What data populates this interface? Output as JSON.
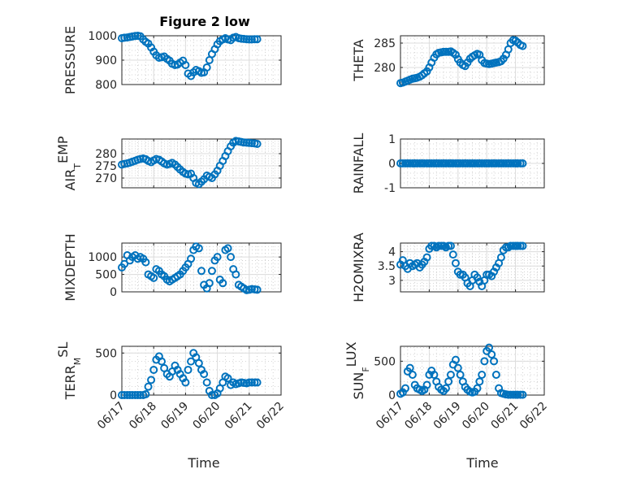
{
  "figure": {
    "title": "Figure 2 low",
    "xlabel": "Time",
    "series_color": "#0072BD",
    "x_ticks": [
      "06/17",
      "06/18",
      "06/19",
      "06/20",
      "06/21",
      "06/22"
    ]
  },
  "chart_data": [
    {
      "type": "scatter",
      "ylabel": "PRESSURE",
      "ylim": [
        800,
        1000
      ],
      "yticks": [
        800,
        900,
        1000
      ],
      "xlim": [
        0,
        5
      ],
      "grid": true,
      "x": [
        0,
        0.08,
        0.17,
        0.25,
        0.33,
        0.42,
        0.5,
        0.58,
        0.67,
        0.75,
        0.83,
        0.92,
        1,
        1.08,
        1.17,
        1.25,
        1.33,
        1.42,
        1.5,
        1.58,
        1.67,
        1.75,
        1.83,
        1.92,
        2,
        2.08,
        2.17,
        2.25,
        2.33,
        2.42,
        2.5,
        2.58,
        2.67,
        2.75,
        2.83,
        2.92,
        3,
        3.08,
        3.17,
        3.25,
        3.33,
        3.42,
        3.5,
        3.58,
        3.67,
        3.75,
        3.83,
        3.92,
        4,
        4.08,
        4.17,
        4.25
      ],
      "y": [
        990,
        992,
        993,
        995,
        997,
        999,
        1000,
        998,
        985,
        975,
        968,
        952,
        935,
        920,
        910,
        912,
        915,
        905,
        898,
        885,
        880,
        882,
        890,
        898,
        880,
        845,
        835,
        850,
        860,
        855,
        848,
        850,
        870,
        900,
        925,
        945,
        965,
        978,
        985,
        990,
        985,
        982,
        992,
        995,
        990,
        988,
        987,
        986,
        985,
        985,
        986,
        986
      ]
    },
    {
      "type": "scatter",
      "ylabel": "THETA",
      "ylim": [
        276.5,
        286.5
      ],
      "yticks": [
        280,
        285
      ],
      "xlim": [
        0,
        5
      ],
      "grid": true,
      "x": [
        0,
        0.08,
        0.17,
        0.25,
        0.33,
        0.42,
        0.5,
        0.58,
        0.67,
        0.75,
        0.83,
        0.92,
        1,
        1.08,
        1.17,
        1.25,
        1.33,
        1.42,
        1.5,
        1.58,
        1.67,
        1.75,
        1.83,
        1.92,
        2,
        2.08,
        2.17,
        2.25,
        2.33,
        2.42,
        2.5,
        2.58,
        2.67,
        2.75,
        2.83,
        2.92,
        3,
        3.08,
        3.17,
        3.25,
        3.33,
        3.42,
        3.5,
        3.58,
        3.67,
        3.75,
        3.83,
        3.92,
        4,
        4.08,
        4.17,
        4.25
      ],
      "y": [
        276.8,
        276.9,
        277.1,
        277.3,
        277.5,
        277.7,
        277.8,
        277.9,
        278.1,
        278.4,
        278.8,
        279.2,
        280.0,
        281.0,
        282.0,
        282.7,
        283.0,
        283.1,
        283.2,
        283.2,
        283.2,
        283.3,
        283.0,
        282.6,
        281.7,
        281.0,
        280.5,
        280.3,
        281.0,
        281.8,
        282.2,
        282.5,
        282.8,
        282.6,
        281.5,
        280.9,
        280.8,
        280.7,
        280.8,
        280.9,
        281.0,
        281.1,
        281.3,
        281.8,
        282.6,
        283.7,
        285.0,
        285.6,
        285.5,
        285.1,
        284.6,
        284.4
      ]
    },
    {
      "type": "scatter",
      "ylabel": "AIR_TEMP",
      "ylim": [
        266,
        286
      ],
      "yticks": [
        270,
        275,
        280
      ],
      "xlim": [
        0,
        5
      ],
      "grid": true,
      "x": [
        0,
        0.08,
        0.17,
        0.25,
        0.33,
        0.42,
        0.5,
        0.58,
        0.67,
        0.75,
        0.83,
        0.92,
        1,
        1.08,
        1.17,
        1.25,
        1.33,
        1.42,
        1.5,
        1.58,
        1.67,
        1.75,
        1.83,
        1.92,
        2,
        2.08,
        2.17,
        2.25,
        2.33,
        2.42,
        2.5,
        2.58,
        2.67,
        2.75,
        2.83,
        2.92,
        3,
        3.08,
        3.17,
        3.25,
        3.33,
        3.42,
        3.5,
        3.58,
        3.67,
        3.75,
        3.83,
        3.92,
        4,
        4.08,
        4.17,
        4.25
      ],
      "y": [
        275.5,
        275.8,
        276.0,
        276.3,
        276.7,
        277.1,
        277.5,
        277.8,
        278.0,
        277.7,
        277.0,
        276.5,
        277.2,
        277.8,
        277.5,
        276.8,
        276.0,
        275.5,
        275.8,
        276.2,
        275.5,
        274.5,
        273.5,
        272.5,
        271.8,
        271.5,
        271.8,
        270.0,
        268.0,
        267.5,
        268.5,
        269.5,
        271.0,
        270.5,
        270.0,
        271.5,
        273.0,
        275.0,
        277.0,
        279.0,
        281.0,
        283.0,
        284.5,
        285.2,
        285.0,
        284.8,
        284.6,
        284.5,
        284.4,
        284.3,
        284.2,
        284.0
      ]
    },
    {
      "type": "scatter",
      "ylabel": "RAINFALL",
      "ylim": [
        -1,
        1
      ],
      "yticks": [
        -1,
        0,
        1
      ],
      "xlim": [
        0,
        5
      ],
      "grid": true,
      "x": [
        0,
        0.08,
        0.17,
        0.25,
        0.33,
        0.42,
        0.5,
        0.58,
        0.67,
        0.75,
        0.83,
        0.92,
        1,
        1.08,
        1.17,
        1.25,
        1.33,
        1.42,
        1.5,
        1.58,
        1.67,
        1.75,
        1.83,
        1.92,
        2,
        2.08,
        2.17,
        2.25,
        2.33,
        2.42,
        2.5,
        2.58,
        2.67,
        2.75,
        2.83,
        2.92,
        3,
        3.08,
        3.17,
        3.25,
        3.33,
        3.42,
        3.5,
        3.58,
        3.67,
        3.75,
        3.83,
        3.92,
        4,
        4.08,
        4.17,
        4.25
      ],
      "y": [
        0,
        0,
        0,
        0,
        0,
        0,
        0,
        0,
        0,
        0,
        0,
        0,
        0,
        0,
        0,
        0,
        0,
        0,
        0,
        0,
        0,
        0,
        0,
        0,
        0,
        0,
        0,
        0,
        0,
        0,
        0,
        0,
        0,
        0,
        0,
        0,
        0,
        0,
        0,
        0,
        0,
        0,
        0,
        0,
        0,
        0,
        0,
        0,
        0,
        0,
        0,
        0
      ]
    },
    {
      "type": "scatter",
      "ylabel": "MIXDEPTH",
      "ylim": [
        0,
        1400
      ],
      "yticks": [
        0,
        500,
        1000
      ],
      "xlim": [
        0,
        5
      ],
      "grid": true,
      "x": [
        0,
        0.08,
        0.17,
        0.25,
        0.33,
        0.42,
        0.5,
        0.58,
        0.67,
        0.75,
        0.83,
        0.92,
        1,
        1.08,
        1.17,
        1.25,
        1.33,
        1.42,
        1.5,
        1.58,
        1.67,
        1.75,
        1.83,
        1.92,
        2,
        2.08,
        2.17,
        2.25,
        2.33,
        2.42,
        2.5,
        2.58,
        2.67,
        2.75,
        2.83,
        2.92,
        3,
        3.08,
        3.17,
        3.25,
        3.33,
        3.42,
        3.5,
        3.58,
        3.67,
        3.75,
        3.83,
        3.92,
        4,
        4.08,
        4.17,
        4.25
      ],
      "y": [
        700,
        800,
        1050,
        900,
        1000,
        1050,
        950,
        1000,
        950,
        850,
        500,
        450,
        400,
        650,
        600,
        500,
        450,
        350,
        300,
        350,
        400,
        450,
        500,
        600,
        700,
        800,
        950,
        1200,
        1300,
        1250,
        600,
        200,
        100,
        250,
        600,
        900,
        1000,
        350,
        250,
        1200,
        1250,
        1000,
        650,
        500,
        200,
        150,
        100,
        50,
        60,
        80,
        70,
        60
      ]
    },
    {
      "type": "scatter",
      "ylabel": "H2OMIXRA",
      "ylim": [
        2.6,
        4.3
      ],
      "yticks": [
        3,
        3.5,
        4
      ],
      "xlim": [
        0,
        5
      ],
      "grid": true,
      "x": [
        0,
        0.08,
        0.17,
        0.25,
        0.33,
        0.42,
        0.5,
        0.58,
        0.67,
        0.75,
        0.83,
        0.92,
        1,
        1.08,
        1.17,
        1.25,
        1.33,
        1.42,
        1.5,
        1.58,
        1.67,
        1.75,
        1.83,
        1.92,
        2,
        2.08,
        2.17,
        2.25,
        2.33,
        2.42,
        2.5,
        2.58,
        2.67,
        2.75,
        2.83,
        2.92,
        3,
        3.08,
        3.17,
        3.25,
        3.33,
        3.42,
        3.5,
        3.58,
        3.67,
        3.75,
        3.83,
        3.92,
        4,
        4.08,
        4.17,
        4.25
      ],
      "y": [
        3.55,
        3.7,
        3.5,
        3.4,
        3.6,
        3.5,
        3.55,
        3.6,
        3.45,
        3.55,
        3.65,
        3.8,
        4.1,
        4.2,
        4.2,
        4.15,
        4.2,
        4.2,
        4.2,
        4.15,
        4.2,
        4.2,
        3.9,
        3.6,
        3.3,
        3.2,
        3.2,
        3.1,
        2.9,
        2.8,
        3.0,
        3.2,
        3.1,
        2.95,
        2.8,
        3.0,
        3.2,
        3.2,
        3.15,
        3.3,
        3.45,
        3.6,
        3.8,
        4.05,
        4.15,
        4.15,
        4.2,
        4.2,
        4.2,
        4.2,
        4.2,
        4.2
      ]
    },
    {
      "type": "scatter",
      "ylabel": "TERR_MSL",
      "ylim": [
        0,
        580
      ],
      "yticks": [
        0,
        500
      ],
      "xlim": [
        0,
        5
      ],
      "grid": true,
      "x": [
        0,
        0.08,
        0.17,
        0.25,
        0.33,
        0.42,
        0.5,
        0.58,
        0.67,
        0.75,
        0.83,
        0.92,
        1,
        1.08,
        1.17,
        1.25,
        1.33,
        1.42,
        1.5,
        1.58,
        1.67,
        1.75,
        1.83,
        1.92,
        2,
        2.08,
        2.17,
        2.25,
        2.33,
        2.42,
        2.5,
        2.58,
        2.67,
        2.75,
        2.83,
        2.92,
        3,
        3.08,
        3.17,
        3.25,
        3.33,
        3.42,
        3.5,
        3.58,
        3.67,
        3.75,
        3.83,
        3.92,
        4,
        4.08,
        4.17,
        4.25
      ],
      "y": [
        0,
        0,
        0,
        0,
        0,
        0,
        0,
        0,
        0,
        10,
        100,
        180,
        300,
        420,
        460,
        400,
        320,
        250,
        220,
        280,
        350,
        300,
        250,
        200,
        150,
        300,
        400,
        500,
        450,
        380,
        300,
        250,
        150,
        50,
        0,
        0,
        20,
        80,
        150,
        220,
        200,
        120,
        150,
        130,
        140,
        150,
        145,
        140,
        150,
        150,
        150,
        150
      ]
    },
    {
      "type": "scatter",
      "ylabel": "SUN_FLUX",
      "ylim": [
        0,
        720
      ],
      "yticks": [
        0,
        500
      ],
      "xlim": [
        0,
        5
      ],
      "grid": true,
      "x": [
        0,
        0.08,
        0.17,
        0.25,
        0.33,
        0.42,
        0.5,
        0.58,
        0.67,
        0.75,
        0.83,
        0.92,
        1,
        1.08,
        1.17,
        1.25,
        1.33,
        1.42,
        1.5,
        1.58,
        1.67,
        1.75,
        1.83,
        1.92,
        2,
        2.08,
        2.17,
        2.25,
        2.33,
        2.42,
        2.5,
        2.58,
        2.67,
        2.75,
        2.83,
        2.92,
        3,
        3.08,
        3.17,
        3.25,
        3.33,
        3.42,
        3.5,
        3.58,
        3.67,
        3.75,
        3.83,
        3.92,
        4,
        4.08,
        4.17,
        4.25
      ],
      "y": [
        20,
        40,
        100,
        350,
        400,
        300,
        150,
        100,
        80,
        60,
        80,
        150,
        300,
        360,
        300,
        200,
        120,
        80,
        60,
        100,
        200,
        300,
        450,
        520,
        400,
        300,
        200,
        120,
        80,
        50,
        40,
        50,
        100,
        200,
        300,
        500,
        650,
        700,
        600,
        500,
        300,
        100,
        30,
        20,
        10,
        5,
        5,
        5,
        5,
        5,
        5,
        5
      ]
    }
  ]
}
